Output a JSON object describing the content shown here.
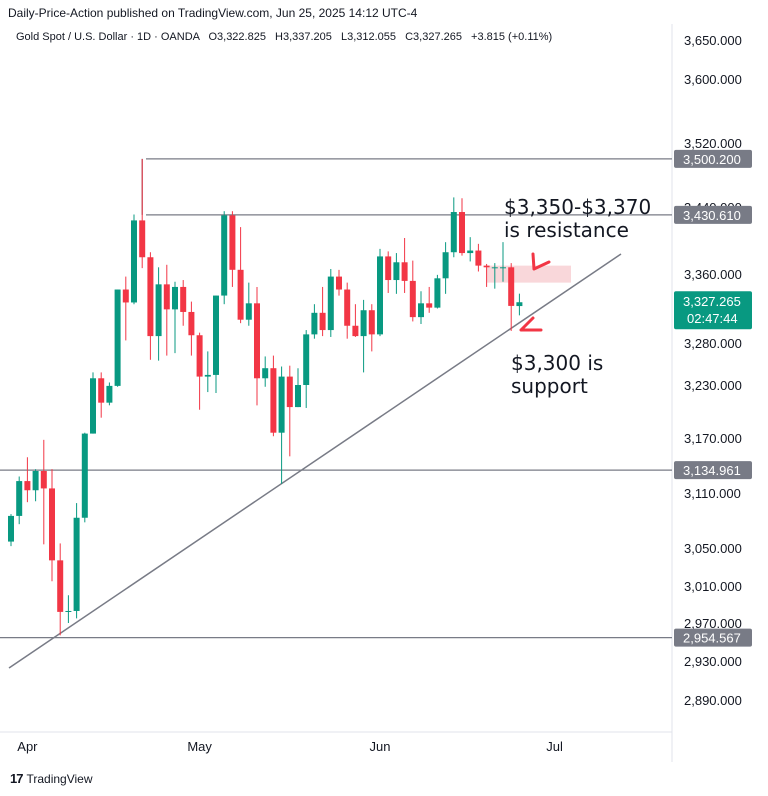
{
  "header": {
    "publisher": "Daily-Price-Action published on TradingView.com, Jun 25, 2025 14:12 UTC-4"
  },
  "legend": {
    "symbol": "Gold Spot / U.S. Dollar · 1D · OANDA",
    "open_label": "O",
    "open": "3,322.825",
    "high_label": "H",
    "high": "3,337.205",
    "low_label": "L",
    "low": "3,312.055",
    "close_label": "C",
    "close": "3,327.265",
    "change": "+3.815 (+0.11%)"
  },
  "footer": {
    "brand": "TradingView",
    "logo_glyph": "17"
  },
  "colors": {
    "up": "#089981",
    "down": "#f23645",
    "line": "#787b86",
    "badge": "#787b86",
    "current": "#089981",
    "zone": "#f8d0d4",
    "arrow": "#f23645"
  },
  "chart_data": {
    "type": "candlestick",
    "title": "Gold Spot / U.S. Dollar · 1D · OANDA",
    "y_ticks": [
      "3,650.000",
      "3,600.000",
      "3,520.000",
      "3,440.000",
      "3,360.000",
      "3,280.000",
      "3,230.000",
      "3,170.000",
      "3,110.000",
      "3,050.000",
      "3,010.000",
      "2,970.000",
      "2,930.000",
      "2,890.000"
    ],
    "x_ticks": [
      "Apr",
      "May",
      "Jun",
      "Jul"
    ],
    "horizontal_levels": [
      {
        "value": 3500.2,
        "label": "3,500.200"
      },
      {
        "value": 3430.61,
        "label": "3,430.610"
      },
      {
        "value": 3134.961,
        "label": "3,134.961"
      },
      {
        "value": 2954.567,
        "label": "2,954.567"
      }
    ],
    "trendline": {
      "from": {
        "date": "2025-03-28",
        "value": 2918
      },
      "to": {
        "date": "2025-06-30",
        "value": 3382
      }
    },
    "resistance_zone": {
      "from": "2025-06-19",
      "to": "2025-06-30",
      "low": 3350,
      "high": 3370
    },
    "current_price": {
      "label": "3,327.265",
      "countdown": "02:47:44"
    },
    "annotations": [
      {
        "text_line1": "$3,350-$3,370",
        "text_line2": "is resistance"
      },
      {
        "text_line1": "$3,300 is",
        "text_line2": "support"
      }
    ],
    "candles": [
      {
        "date": "2025-03-28",
        "o": 3057,
        "h": 3087,
        "l": 3052,
        "c": 3085
      },
      {
        "date": "2025-03-31",
        "o": 3085,
        "h": 3128,
        "l": 3076,
        "c": 3123
      },
      {
        "date": "2025-04-01",
        "o": 3123,
        "h": 3149,
        "l": 3100,
        "c": 3113
      },
      {
        "date": "2025-04-02",
        "o": 3113,
        "h": 3136,
        "l": 3101,
        "c": 3134
      },
      {
        "date": "2025-04-03",
        "o": 3134,
        "h": 3168,
        "l": 3054,
        "c": 3115
      },
      {
        "date": "2025-04-04",
        "o": 3115,
        "h": 3136,
        "l": 3015,
        "c": 3037
      },
      {
        "date": "2025-04-07",
        "o": 3037,
        "h": 3055,
        "l": 2957,
        "c": 2982
      },
      {
        "date": "2025-04-08",
        "o": 2982,
        "h": 3000,
        "l": 2970,
        "c": 2983
      },
      {
        "date": "2025-04-09",
        "o": 2983,
        "h": 3099,
        "l": 2975,
        "c": 3083
      },
      {
        "date": "2025-04-10",
        "o": 3083,
        "h": 3176,
        "l": 3078,
        "c": 3175
      },
      {
        "date": "2025-04-11",
        "o": 3175,
        "h": 3245,
        "l": 3175,
        "c": 3238
      },
      {
        "date": "2025-04-14",
        "o": 3238,
        "h": 3245,
        "l": 3193,
        "c": 3210
      },
      {
        "date": "2025-04-15",
        "o": 3210,
        "h": 3233,
        "l": 3207,
        "c": 3229
      },
      {
        "date": "2025-04-16",
        "o": 3229,
        "h": 3342,
        "l": 3228,
        "c": 3342
      },
      {
        "date": "2025-04-17",
        "o": 3342,
        "h": 3357,
        "l": 3283,
        "c": 3327
      },
      {
        "date": "2025-04-21",
        "o": 3327,
        "h": 3431,
        "l": 3325,
        "c": 3424
      },
      {
        "date": "2025-04-22",
        "o": 3424,
        "h": 3500,
        "l": 3367,
        "c": 3380
      },
      {
        "date": "2025-04-23",
        "o": 3380,
        "h": 3386,
        "l": 3260,
        "c": 3288
      },
      {
        "date": "2025-04-24",
        "o": 3288,
        "h": 3368,
        "l": 3259,
        "c": 3348
      },
      {
        "date": "2025-04-25",
        "o": 3348,
        "h": 3371,
        "l": 3265,
        "c": 3319
      },
      {
        "date": "2025-04-28",
        "o": 3319,
        "h": 3351,
        "l": 3268,
        "c": 3345
      },
      {
        "date": "2025-04-29",
        "o": 3345,
        "h": 3353,
        "l": 3300,
        "c": 3316
      },
      {
        "date": "2025-04-30",
        "o": 3316,
        "h": 3328,
        "l": 3265,
        "c": 3289
      },
      {
        "date": "2025-05-01",
        "o": 3289,
        "h": 3292,
        "l": 3202,
        "c": 3240
      },
      {
        "date": "2025-05-02",
        "o": 3240,
        "h": 3270,
        "l": 3222,
        "c": 3242
      },
      {
        "date": "2025-05-05",
        "o": 3242,
        "h": 3335,
        "l": 3221,
        "c": 3335
      },
      {
        "date": "2025-05-06",
        "o": 3335,
        "h": 3435,
        "l": 3325,
        "c": 3430
      },
      {
        "date": "2025-05-07",
        "o": 3430,
        "h": 3435,
        "l": 3345,
        "c": 3365
      },
      {
        "date": "2025-05-08",
        "o": 3365,
        "h": 3416,
        "l": 3303,
        "c": 3307
      },
      {
        "date": "2025-05-09",
        "o": 3307,
        "h": 3350,
        "l": 3300,
        "c": 3326
      },
      {
        "date": "2025-05-12",
        "o": 3326,
        "h": 3345,
        "l": 3207,
        "c": 3238
      },
      {
        "date": "2025-05-13",
        "o": 3238,
        "h": 3264,
        "l": 3228,
        "c": 3250
      },
      {
        "date": "2025-05-14",
        "o": 3250,
        "h": 3265,
        "l": 3172,
        "c": 3176
      },
      {
        "date": "2025-05-15",
        "o": 3176,
        "h": 3252,
        "l": 3120,
        "c": 3240
      },
      {
        "date": "2025-05-16",
        "o": 3240,
        "h": 3253,
        "l": 3150,
        "c": 3205
      },
      {
        "date": "2025-05-19",
        "o": 3205,
        "h": 3250,
        "l": 3205,
        "c": 3230
      },
      {
        "date": "2025-05-20",
        "o": 3230,
        "h": 3295,
        "l": 3204,
        "c": 3290
      },
      {
        "date": "2025-05-21",
        "o": 3290,
        "h": 3325,
        "l": 3285,
        "c": 3315
      },
      {
        "date": "2025-05-22",
        "o": 3315,
        "h": 3345,
        "l": 3288,
        "c": 3295
      },
      {
        "date": "2025-05-23",
        "o": 3295,
        "h": 3366,
        "l": 3287,
        "c": 3357
      },
      {
        "date": "2025-05-26",
        "o": 3357,
        "h": 3365,
        "l": 3335,
        "c": 3342
      },
      {
        "date": "2025-05-27",
        "o": 3342,
        "h": 3350,
        "l": 3285,
        "c": 3300
      },
      {
        "date": "2025-05-28",
        "o": 3300,
        "h": 3325,
        "l": 3287,
        "c": 3288
      },
      {
        "date": "2025-05-29",
        "o": 3288,
        "h": 3330,
        "l": 3245,
        "c": 3318
      },
      {
        "date": "2025-05-30",
        "o": 3318,
        "h": 3325,
        "l": 3270,
        "c": 3290
      },
      {
        "date": "2025-06-02",
        "o": 3290,
        "h": 3390,
        "l": 3288,
        "c": 3381
      },
      {
        "date": "2025-06-03",
        "o": 3381,
        "h": 3387,
        "l": 3338,
        "c": 3353
      },
      {
        "date": "2025-06-04",
        "o": 3353,
        "h": 3385,
        "l": 3337,
        "c": 3374
      },
      {
        "date": "2025-06-05",
        "o": 3374,
        "h": 3403,
        "l": 3338,
        "c": 3352
      },
      {
        "date": "2025-06-06",
        "o": 3352,
        "h": 3376,
        "l": 3305,
        "c": 3310
      },
      {
        "date": "2025-06-09",
        "o": 3310,
        "h": 3340,
        "l": 3302,
        "c": 3326
      },
      {
        "date": "2025-06-10",
        "o": 3326,
        "h": 3345,
        "l": 3315,
        "c": 3321
      },
      {
        "date": "2025-06-11",
        "o": 3321,
        "h": 3359,
        "l": 3320,
        "c": 3355
      },
      {
        "date": "2025-06-12",
        "o": 3355,
        "h": 3398,
        "l": 3337,
        "c": 3386
      },
      {
        "date": "2025-06-13",
        "o": 3386,
        "h": 3452,
        "l": 3380,
        "c": 3434
      },
      {
        "date": "2025-06-16",
        "o": 3434,
        "h": 3451,
        "l": 3382,
        "c": 3385
      },
      {
        "date": "2025-06-17",
        "o": 3385,
        "h": 3404,
        "l": 3375,
        "c": 3388
      },
      {
        "date": "2025-06-18",
        "o": 3388,
        "h": 3396,
        "l": 3363,
        "c": 3370
      },
      {
        "date": "2025-06-19",
        "o": 3370,
        "h": 3372,
        "l": 3345,
        "c": 3368
      },
      {
        "date": "2025-06-20",
        "o": 3368,
        "h": 3373,
        "l": 3343,
        "c": 3368
      },
      {
        "date": "2025-06-23",
        "o": 3368,
        "h": 3398,
        "l": 3351,
        "c": 3368
      },
      {
        "date": "2025-06-24",
        "o": 3368,
        "h": 3373,
        "l": 3294,
        "c": 3323
      },
      {
        "date": "2025-06-25",
        "o": 3322.825,
        "h": 3337.205,
        "l": 3312.055,
        "c": 3327.265
      }
    ]
  }
}
